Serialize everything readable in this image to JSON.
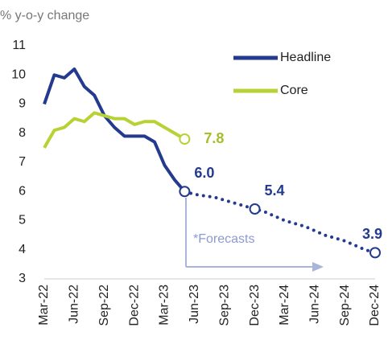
{
  "chart_data": {
    "type": "line",
    "subtitle": "% y-o-y change",
    "categories": [
      "Mar-22",
      null,
      null,
      "Jun-22",
      null,
      null,
      "Sep-22",
      null,
      null,
      "Dec-22",
      null,
      null,
      "Mar-23",
      null,
      null,
      "Jun-23",
      null,
      null,
      "Sep-23",
      null,
      null,
      "Dec-23",
      null,
      null,
      "Mar-24",
      null,
      null,
      "Jun-24",
      null,
      null,
      "Sep-24",
      null,
      null,
      "Dec-24"
    ],
    "ylim": [
      3,
      11
    ],
    "yticks": [
      3,
      4,
      5,
      6,
      7,
      8,
      9,
      10,
      11
    ],
    "series": [
      {
        "name": "Headline",
        "color": "#233a8f",
        "style": "solid",
        "values": [
          9.0,
          10.0,
          9.9,
          10.2,
          9.6,
          9.3,
          8.6,
          8.2,
          7.9,
          7.9,
          7.9,
          7.7,
          6.9,
          6.4,
          6.0,
          null,
          null,
          null,
          null,
          null,
          null,
          null,
          null,
          null,
          null,
          null,
          null,
          null,
          null,
          null,
          null,
          null,
          null,
          null
        ],
        "value_labels": [
          null,
          null,
          null,
          null,
          null,
          null,
          null,
          null,
          null,
          null,
          null,
          null,
          null,
          null,
          null,
          null,
          null,
          null,
          null,
          null,
          null,
          null,
          null,
          null,
          null,
          null,
          null,
          null,
          null,
          null,
          null,
          null,
          null,
          null
        ]
      },
      {
        "color": "#233a8f",
        "style": "dotted",
        "values": [
          null,
          null,
          null,
          null,
          null,
          null,
          null,
          null,
          null,
          null,
          null,
          null,
          null,
          null,
          6.0,
          5.9,
          5.85,
          5.8,
          5.7,
          5.6,
          5.5,
          5.4,
          5.3,
          5.15,
          5.0,
          4.9,
          4.8,
          4.65,
          4.5,
          4.4,
          4.3,
          4.15,
          4.0,
          3.9
        ],
        "value_labels": [
          null,
          null,
          null,
          null,
          null,
          null,
          null,
          null,
          null,
          null,
          null,
          null,
          null,
          null,
          "6.0",
          null,
          null,
          null,
          null,
          null,
          null,
          "5.4",
          null,
          null,
          null,
          null,
          null,
          null,
          null,
          null,
          null,
          null,
          null,
          "3.9"
        ]
      },
      {
        "name": "Core",
        "color": "#b6d234",
        "label_color": "#a9bc2c",
        "style": "solid",
        "values": [
          7.5,
          8.1,
          8.2,
          8.5,
          8.4,
          8.7,
          8.6,
          8.5,
          8.5,
          8.3,
          8.4,
          8.4,
          8.2,
          8.0,
          7.8,
          null,
          null,
          null,
          null,
          null,
          null,
          null,
          null,
          null,
          null,
          null,
          null,
          null,
          null,
          null,
          null,
          null,
          null,
          null
        ],
        "value_labels": [
          null,
          null,
          null,
          null,
          null,
          null,
          null,
          null,
          null,
          null,
          null,
          null,
          null,
          null,
          "7.8",
          null,
          null,
          null,
          null,
          null,
          null,
          null,
          null,
          null,
          null,
          null,
          null,
          null,
          null,
          null,
          null,
          null,
          null,
          null
        ]
      }
    ],
    "annotation": "*Forecasts"
  }
}
